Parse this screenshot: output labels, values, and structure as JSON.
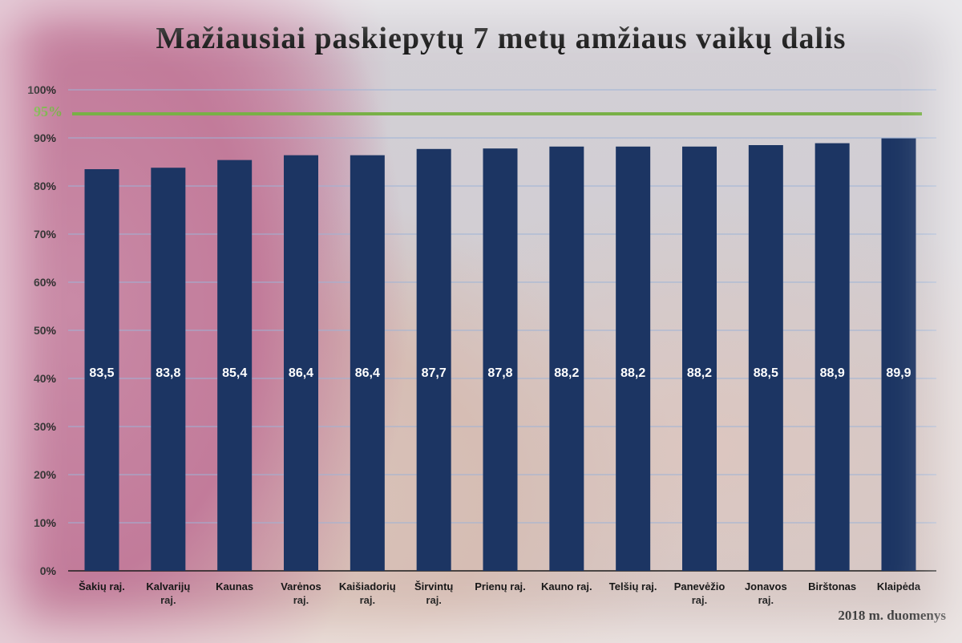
{
  "title": "Mažiausiai paskiepytų 7 metų amžiaus vaikų dalis",
  "source_note": "2018 m. duomenys",
  "colors": {
    "bar": "#1c3563",
    "reference_line": "#78b046",
    "grid": "#9db3d6"
  },
  "chart_data": {
    "type": "bar",
    "categories": [
      [
        "Šakių raj."
      ],
      [
        "Kalvarijų",
        "raj."
      ],
      [
        "Kaunas"
      ],
      [
        "Varėnos",
        "raj."
      ],
      [
        "Kaišiadorių",
        "raj."
      ],
      [
        "Širvintų",
        "raj."
      ],
      [
        "Prienų raj."
      ],
      [
        "Kauno raj."
      ],
      [
        "Telšių raj."
      ],
      [
        "Panevėžio",
        "raj."
      ],
      [
        "Jonavos",
        "raj."
      ],
      [
        "Birštonas"
      ],
      [
        "Klaipėda"
      ]
    ],
    "values": [
      83.5,
      83.8,
      85.4,
      86.4,
      86.4,
      87.7,
      87.8,
      88.2,
      88.2,
      88.2,
      88.5,
      88.9,
      89.9
    ],
    "value_labels": [
      "83,5",
      "83,8",
      "85,4",
      "86,4",
      "86,4",
      "87,7",
      "87,8",
      "88,2",
      "88,2",
      "88,2",
      "88,5",
      "88,9",
      "89,9"
    ],
    "ylim": [
      0,
      100
    ],
    "yticks": [
      0,
      10,
      20,
      30,
      40,
      50,
      60,
      70,
      80,
      90,
      100
    ],
    "ytick_labels": [
      "0%",
      "10%",
      "20%",
      "30%",
      "40%",
      "50%",
      "60%",
      "70%",
      "80%",
      "90%",
      "100%"
    ],
    "grid": true,
    "reference_line": {
      "value": 95,
      "label": "95%"
    },
    "xlabel": "",
    "ylabel": ""
  }
}
